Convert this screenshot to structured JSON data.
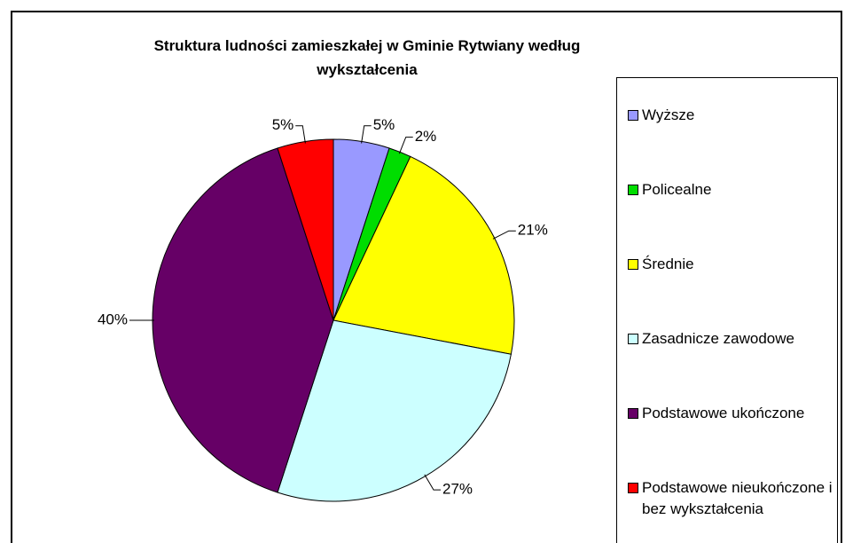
{
  "chart_data": {
    "type": "pie",
    "title": "Struktura ludności zamieszkałej w Gminie Rytwiany według wykształcenia",
    "categories": [
      "Wyższe",
      "Policealne",
      "Średnie",
      "Zasadnicze zawodowe",
      "Podstawowe ukończone",
      "Podstawowe nieukończone i bez wykształcenia"
    ],
    "values": [
      5,
      2,
      21,
      27,
      40,
      5
    ],
    "value_labels": [
      "5%",
      "2%",
      "21%",
      "27%",
      "40%",
      "5%"
    ],
    "colors": [
      "#9999ff",
      "#00dd00",
      "#ffff00",
      "#ccffff",
      "#660066",
      "#ff0000"
    ],
    "legend": "right"
  }
}
